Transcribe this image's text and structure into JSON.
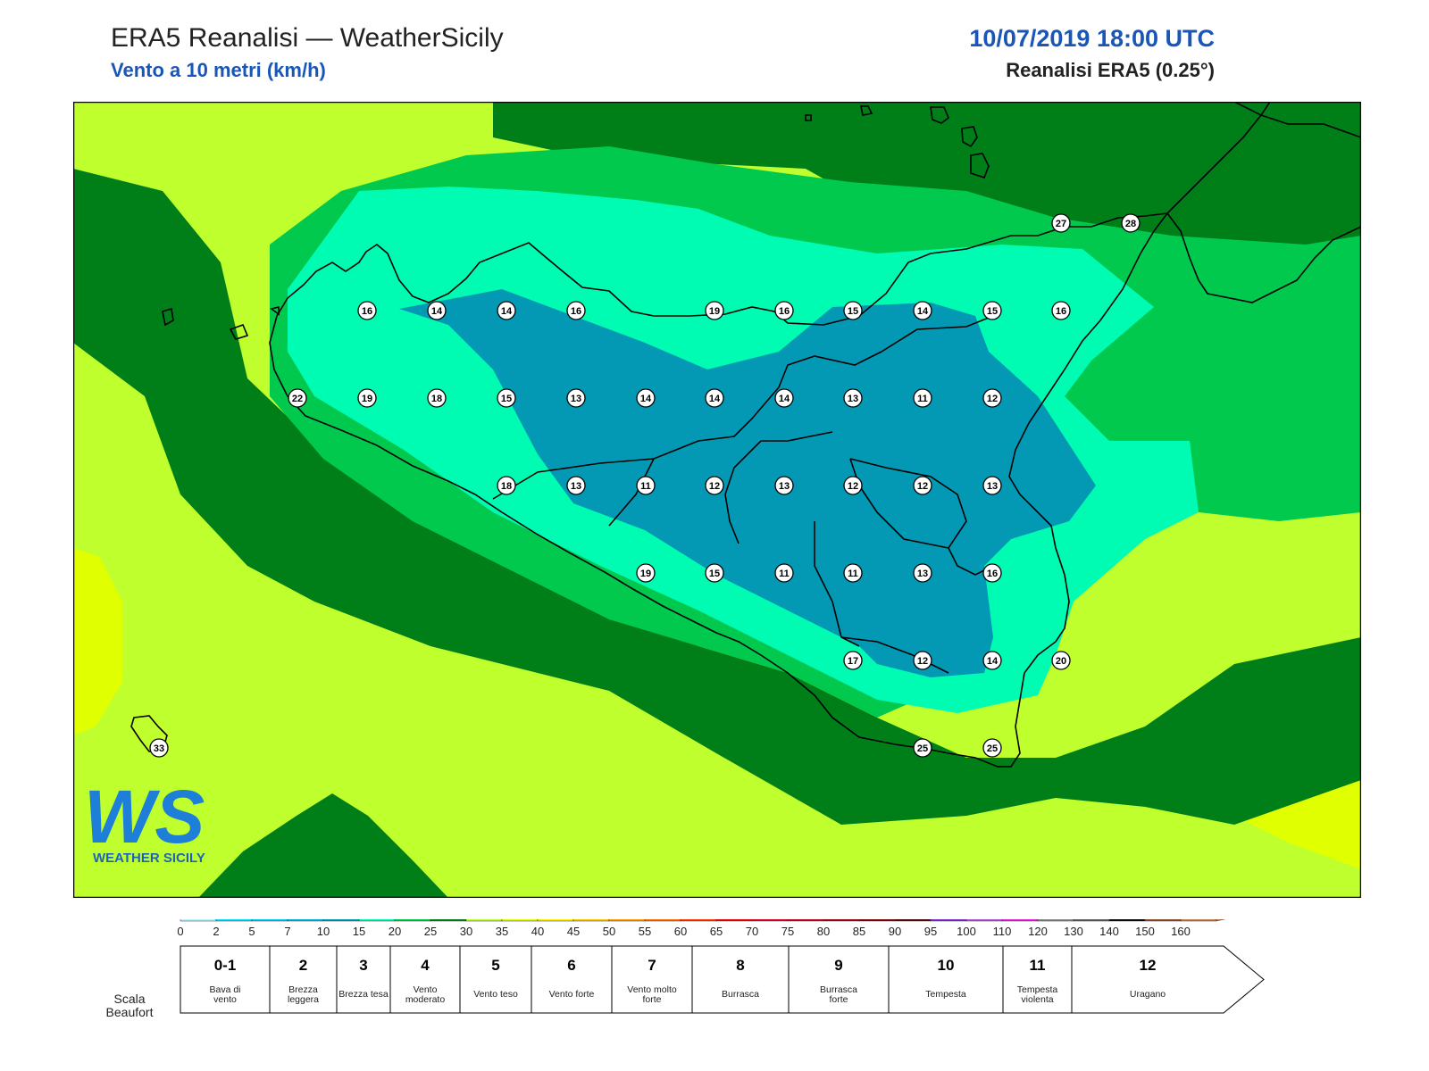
{
  "header": {
    "title": "ERA5 Reanalisi — WeatherSicily",
    "subtitle": "Vento a 10 metri (km/h)",
    "datetime": "10/07/2019 18:00 UTC",
    "model": "Reanalisi ERA5 (0.25°)"
  },
  "logo": {
    "text": "WS",
    "caption": "WEATHER SICILY"
  },
  "colors": {
    "band_0_2": "#b4f4fd",
    "band_2_5": "#00e0fb",
    "band_5_7": "#00cbef",
    "band_7_10": "#00b4dc",
    "band_10_15": "#0399b4",
    "band_15_20": "#00fbb2",
    "band_20_25": "#00c94e",
    "band_25_30": "#007f19",
    "band_30_35": "#c0ff2e",
    "band_35_40": "#e0ff00",
    "coast": "#000000"
  },
  "wind_stations": [
    {
      "value": "27"
    },
    {
      "value": "28"
    },
    {
      "value": "16"
    },
    {
      "value": "14"
    },
    {
      "value": "14"
    },
    {
      "value": "16"
    },
    {
      "value": "19"
    },
    {
      "value": "16"
    },
    {
      "value": "15"
    },
    {
      "value": "14"
    },
    {
      "value": "15"
    },
    {
      "value": "16"
    },
    {
      "value": "22"
    },
    {
      "value": "19"
    },
    {
      "value": "18"
    },
    {
      "value": "15"
    },
    {
      "value": "13"
    },
    {
      "value": "14"
    },
    {
      "value": "14"
    },
    {
      "value": "14"
    },
    {
      "value": "13"
    },
    {
      "value": "11"
    },
    {
      "value": "12"
    },
    {
      "value": "18"
    },
    {
      "value": "13"
    },
    {
      "value": "11"
    },
    {
      "value": "12"
    },
    {
      "value": "13"
    },
    {
      "value": "12"
    },
    {
      "value": "12"
    },
    {
      "value": "13"
    },
    {
      "value": "19"
    },
    {
      "value": "15"
    },
    {
      "value": "11"
    },
    {
      "value": "11"
    },
    {
      "value": "13"
    },
    {
      "value": "16"
    },
    {
      "value": "17"
    },
    {
      "value": "12"
    },
    {
      "value": "14"
    },
    {
      "value": "20"
    },
    {
      "value": "25"
    },
    {
      "value": "25"
    },
    {
      "value": "33"
    }
  ],
  "colorbar": {
    "ticks": [
      "0",
      "2",
      "5",
      "7",
      "10",
      "15",
      "20",
      "25",
      "30",
      "35",
      "40",
      "45",
      "50",
      "55",
      "60",
      "65",
      "70",
      "75",
      "80",
      "85",
      "90",
      "95",
      "100",
      "110",
      "120",
      "130",
      "140",
      "150",
      "160"
    ],
    "colors": [
      "#b4f4fd",
      "#00e0fb",
      "#00cbef",
      "#00b4dc",
      "#0399b4",
      "#00fbb2",
      "#00c94e",
      "#007f19",
      "#c0ff2e",
      "#e0ff00",
      "#fff000",
      "#ffc800",
      "#ff9a00",
      "#ff6a00",
      "#ff3200",
      "#ef0000",
      "#d40022",
      "#bb0022",
      "#990010",
      "#780000",
      "#500000",
      "#7b2bcc",
      "#b54fd6",
      "#e01fd6",
      "#858585",
      "#5c5c5c",
      "#000000",
      "#8b4a2b",
      "#c87b44"
    ]
  },
  "beaufort": {
    "label": "Scala Beaufort",
    "cells": [
      {
        "num": "0-1",
        "desc": "Bava di vento"
      },
      {
        "num": "2",
        "desc": "Brezza leggera"
      },
      {
        "num": "3",
        "desc": "Brezza tesa"
      },
      {
        "num": "4",
        "desc": "Vento moderato"
      },
      {
        "num": "5",
        "desc": "Vento teso"
      },
      {
        "num": "6",
        "desc": "Vento forte"
      },
      {
        "num": "7",
        "desc": "Vento molto forte"
      },
      {
        "num": "8",
        "desc": "Burrasca"
      },
      {
        "num": "9",
        "desc": "Burrasca forte"
      },
      {
        "num": "10",
        "desc": "Tempesta"
      },
      {
        "num": "11",
        "desc": "Tempesta violenta"
      },
      {
        "num": "12",
        "desc": "Uragano"
      }
    ]
  }
}
